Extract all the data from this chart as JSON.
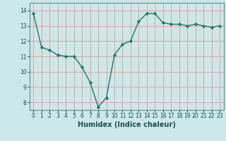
{
  "x": [
    0,
    1,
    2,
    3,
    4,
    5,
    6,
    7,
    8,
    9,
    10,
    11,
    12,
    13,
    14,
    15,
    16,
    17,
    18,
    19,
    20,
    21,
    22,
    23
  ],
  "y": [
    13.8,
    11.6,
    11.4,
    11.1,
    11.0,
    11.0,
    10.3,
    9.3,
    7.7,
    8.3,
    11.1,
    11.8,
    12.0,
    13.3,
    13.8,
    13.8,
    13.2,
    13.1,
    13.1,
    13.0,
    13.1,
    13.0,
    12.9,
    13.0
  ],
  "line_color": "#1a7a6e",
  "marker": "D",
  "marker_size": 1.8,
  "bg_color": "#cce8e8",
  "grid_color": "#e8a0a0",
  "xlabel": "Humidex (Indice chaleur)",
  "ylim": [
    7.5,
    14.5
  ],
  "xlim": [
    -0.5,
    23.5
  ],
  "yticks": [
    8,
    9,
    10,
    11,
    12,
    13,
    14
  ],
  "xticks": [
    0,
    1,
    2,
    3,
    4,
    5,
    6,
    7,
    8,
    9,
    10,
    11,
    12,
    13,
    14,
    15,
    16,
    17,
    18,
    19,
    20,
    21,
    22,
    23
  ],
  "tick_fontsize": 5.5,
  "xlabel_fontsize": 7.0,
  "line_width": 1.0,
  "tick_color": "#1a5050",
  "spine_color": "#5a9090"
}
